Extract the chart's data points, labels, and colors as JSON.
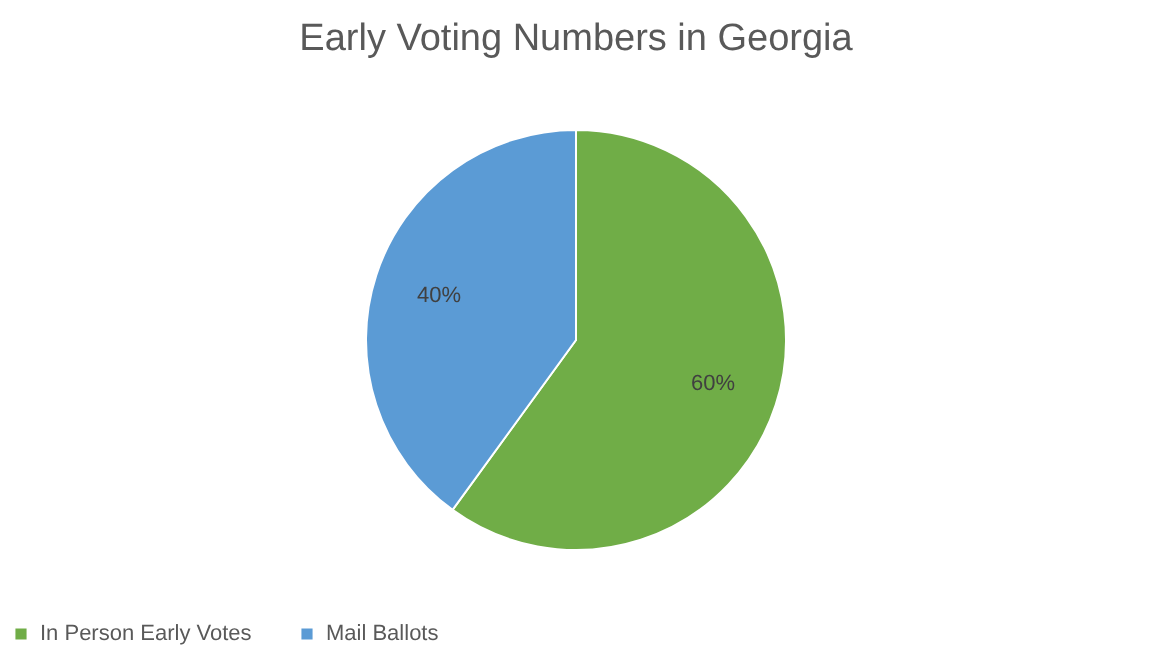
{
  "chart_data": {
    "type": "pie",
    "title": "Early Voting Numbers in Georgia",
    "categories": [
      "In Person Early Votes",
      "Mail Ballots"
    ],
    "values": [
      60,
      40
    ],
    "colors": [
      "#70ad47",
      "#5b9bd5"
    ],
    "value_labels": [
      "60%",
      "40%"
    ],
    "legend": "bottom"
  }
}
